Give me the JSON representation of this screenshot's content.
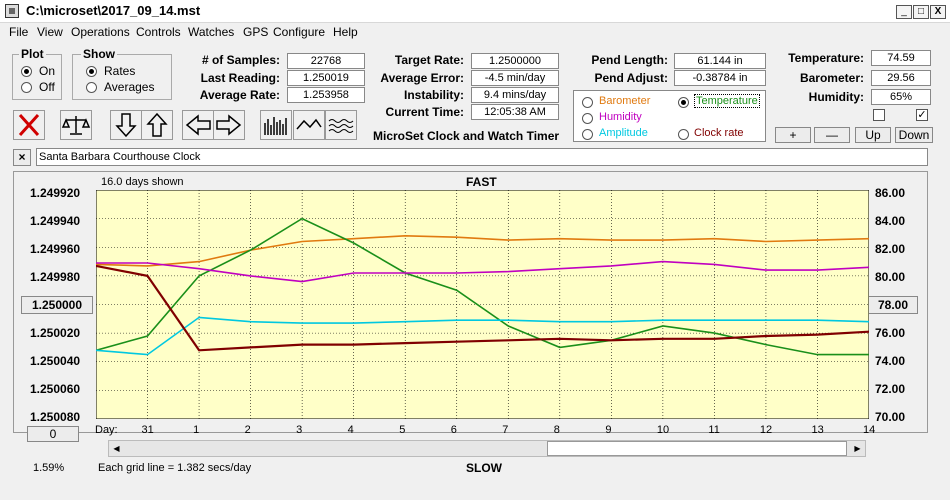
{
  "window": {
    "title": "C:\\microset\\2017_09_14.mst",
    "min": "_",
    "max": "□",
    "close": "X"
  },
  "menu": [
    "File",
    "View",
    "Operations",
    "Controls",
    "Watches",
    "GPS",
    "Configure",
    "Help"
  ],
  "plot": {
    "title": "Plot",
    "on": "On",
    "off": "Off",
    "selected": "On"
  },
  "show": {
    "title": "Show",
    "rates": "Rates",
    "averages": "Averages",
    "selected": "Rates"
  },
  "stats": {
    "samples_label": "# of Samples:",
    "samples": "22768",
    "last_label": "Last Reading:",
    "last": "1.250019",
    "avg_label": "Average Rate:",
    "avg": "1.253958"
  },
  "target": {
    "rate_label": "Target Rate:",
    "rate": "1.2500000",
    "error_label": "Average Error:",
    "error": "-4.5 min/day",
    "instab_label": "Instability:",
    "instab": "9.4 mins/day",
    "time_label": "Current Time:",
    "time": "12:05:38 AM",
    "caption": "MicroSet Clock and Watch Timer"
  },
  "pend": {
    "length_label": "Pend Length:",
    "length": "61.144 in",
    "adjust_label": "Pend Adjust:",
    "adjust": "-0.38784 in"
  },
  "plot_options": {
    "barometer": "Barometer",
    "temperature": "Temperature",
    "humidity": "Humidity",
    "amplitude": "Amplitude",
    "clock_rate": "Clock rate",
    "selected": "Temperature",
    "colors": {
      "barometer": "#e07a10",
      "temperature": "#1a8f1a",
      "humidity": "#c000c0",
      "amplitude": "#00c8e0",
      "clock_rate": "#800000"
    }
  },
  "env": {
    "temp_label": "Temperature:",
    "temp": "74.59",
    "baro_label": "Barometer:",
    "baro": "29.56",
    "hum_label": "Humidity:",
    "hum": "65%"
  },
  "env_buttons": {
    "plus": "+",
    "minus": "—",
    "up": "Up",
    "down": "Down"
  },
  "clock_name": "Santa Barbara Courthouse Clock",
  "clock_close": "×",
  "graph": {
    "days_shown": "16.0 days shown",
    "fast": "FAST",
    "slow": "SLOW",
    "left_ticks": [
      "1.249920",
      "1.249940",
      "1.249960",
      "1.249980",
      "1.250000",
      "1.250020",
      "1.250040",
      "1.250060",
      "1.250080"
    ],
    "right_ticks": [
      "86.00",
      "84.00",
      "82.00",
      "80.00",
      "78.00",
      "76.00",
      "74.00",
      "72.00",
      "70.00"
    ],
    "center_left_button": "1.250000",
    "center_right_button": "78.00",
    "bottom_left_button": "0",
    "day_label": "Day:",
    "days": [
      "31",
      "1",
      "2",
      "3",
      "4",
      "5",
      "6",
      "7",
      "8",
      "9",
      "10",
      "11",
      "12",
      "13",
      "14"
    ],
    "gridline_note": "Each grid line = 1.382 secs/day",
    "percent": "1.59%",
    "bg": "#ffffc8"
  },
  "toolbar_icons": [
    "cancel-icon",
    "scale-icon",
    "arrow-down-icon",
    "arrow-up-icon",
    "arrow-left-icon",
    "arrow-right-icon",
    "bars-icon",
    "wave-icon",
    "flat-wave-icon"
  ],
  "chart_data": {
    "type": "line",
    "x_label": "Day",
    "x_days": [
      0,
      1,
      2,
      3,
      4,
      5,
      6,
      7,
      8,
      9,
      10,
      11,
      12,
      13,
      14,
      15
    ],
    "series": [
      {
        "name": "Barometer",
        "color": "#e07a10",
        "axis": "right",
        "values": [
          80.8,
          80.7,
          81.0,
          81.8,
          82.4,
          82.6,
          82.8,
          82.7,
          82.5,
          82.6,
          82.5,
          82.5,
          82.6,
          82.4,
          82.5,
          82.6
        ]
      },
      {
        "name": "Temperature",
        "color": "#1a8f1a",
        "axis": "right",
        "values": [
          74.8,
          75.8,
          80.0,
          81.8,
          84.0,
          82.3,
          80.2,
          79.0,
          76.5,
          75.0,
          75.5,
          76.5,
          76.0,
          75.2,
          74.5,
          74.5
        ]
      },
      {
        "name": "Humidity",
        "color": "#c000c0",
        "axis": "right",
        "values": [
          80.9,
          80.9,
          80.5,
          80.0,
          79.6,
          80.2,
          80.2,
          80.2,
          80.3,
          80.5,
          80.7,
          81.0,
          80.8,
          80.4,
          80.4,
          80.6
        ]
      },
      {
        "name": "Amplitude",
        "color": "#00c8e0",
        "axis": "right",
        "values": [
          74.8,
          74.5,
          77.1,
          76.8,
          76.7,
          76.7,
          76.8,
          76.9,
          76.9,
          76.8,
          76.8,
          76.9,
          76.9,
          76.9,
          76.9,
          76.8
        ]
      },
      {
        "name": "Clock rate",
        "color": "#800000",
        "axis": "left",
        "values": [
          1.249973,
          1.24998,
          1.250032,
          1.25003,
          1.250028,
          1.250028,
          1.250027,
          1.250026,
          1.250025,
          1.250024,
          1.250025,
          1.250024,
          1.250024,
          1.250022,
          1.250021,
          1.250019
        ]
      }
    ],
    "left_ylim": [
      1.24992,
      1.25008
    ],
    "right_ylim": [
      70,
      86
    ]
  }
}
